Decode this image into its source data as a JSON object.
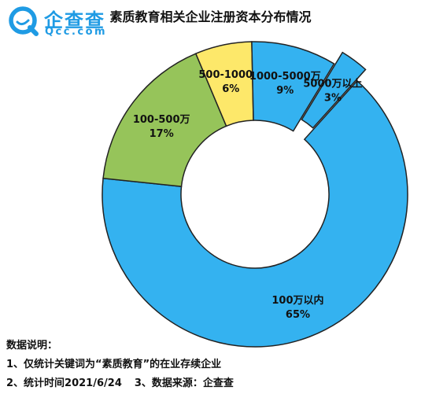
{
  "logo": {
    "name_cn": "企查查",
    "name_en": "Qcc.com"
  },
  "colors": {
    "brand": "#1f9be4",
    "blue": "#34b2f0",
    "yellow": "#fde86a",
    "green": "#96c45a",
    "stroke": "#222222"
  },
  "chart_data": {
    "type": "pie",
    "title": "素质教育相关企业注册资本分布情况",
    "donut": true,
    "slices": [
      {
        "label": "100万以内",
        "value": 65,
        "value_label": "65%",
        "color": "#34b2f0",
        "exploded": false
      },
      {
        "label": "100-500万",
        "value": 17,
        "value_label": "17%",
        "color": "#96c45a",
        "exploded": false
      },
      {
        "label": "500-1000万",
        "value": 6,
        "value_label": "6%",
        "color": "#fde86a",
        "exploded": false
      },
      {
        "label": "1000-5000万",
        "value": 9,
        "value_label": "9%",
        "color": "#34b2f0",
        "exploded": false
      },
      {
        "label": "5000万以上",
        "value": 3,
        "value_label": "3%",
        "color": "#34b2f0",
        "exploded": true
      }
    ]
  },
  "notes": {
    "heading": "数据说明：",
    "line1": "1、仅统计关键词为“素质教育”的在业存续企业",
    "line2a": "2、统计时间2021/6/24",
    "line2b": "3、数据来源：企查查"
  }
}
